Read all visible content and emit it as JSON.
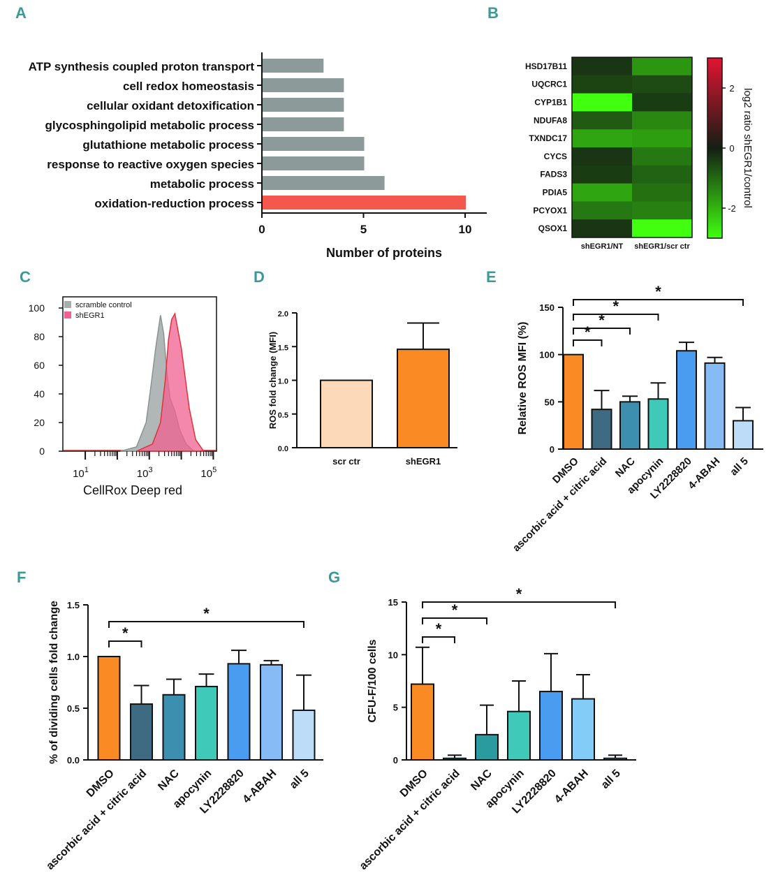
{
  "colors": {
    "panel_label": "#3a9a97",
    "grey_bar": "#8c9a99",
    "red_bar": "#f4574c",
    "histo_grey": "#a7afae",
    "histo_pink": "#f06090",
    "histo_red": "#e0303a",
    "scr_bar": "#fcd9b8",
    "orange": "#f98a24",
    "darkblue": "#3e6a82",
    "steel": "#3d8fb0",
    "teal": "#3fc9b9",
    "blue": "#4a9cf0",
    "lightblue": "#86bbf5",
    "palest": "#bcdcf7",
    "skyblue": "#83ccf7",
    "teal_dark": "#2a9ca0"
  },
  "chart_data": [
    {
      "id": "A",
      "panel_label": "A",
      "type": "bar",
      "orientation": "horizontal",
      "categories": [
        "ATP synthesis coupled proton transport",
        "cell redox homeostasis",
        "cellular oxidant detoxification",
        "glycosphingolipid metabolic process",
        "glutathione metabolic process",
        "response to reactive oxygen species",
        "metabolic process",
        "oxidation-reduction process"
      ],
      "values": [
        3,
        4,
        4,
        4,
        5,
        5,
        6,
        10
      ],
      "highlight_index": 7,
      "xlabel": "Number of proteins",
      "xlim": [
        0,
        11
      ],
      "xticks": [
        "0",
        "5",
        "10"
      ]
    },
    {
      "id": "B",
      "panel_label": "B",
      "type": "heatmap",
      "rows": [
        "HSD17B11",
        "UQCRC1",
        "CYP1B1",
        "NDUFA8",
        "TXNDC17",
        "CYCS",
        "FADS3",
        "PDIA5",
        "PCYOX1",
        "QSOX1"
      ],
      "columns": [
        "shEGR1/NT",
        "shEGR1/scr ctr"
      ],
      "values": [
        [
          -0.3,
          -1.6
        ],
        [
          -0.5,
          -0.6
        ],
        [
          -3.0,
          -0.4
        ],
        [
          -0.8,
          -1.4
        ],
        [
          -1.8,
          -1.7
        ],
        [
          -0.3,
          -1.2
        ],
        [
          -0.4,
          -0.9
        ],
        [
          -1.8,
          -1.1
        ],
        [
          -1.2,
          -1.3
        ],
        [
          -0.3,
          -3.0
        ]
      ],
      "colorbar_label": "log2 ratio shEGR1/control",
      "colorbar_range": [
        -3,
        3
      ],
      "colorbar_ticks": [
        "2",
        "0",
        "-2"
      ]
    },
    {
      "id": "C",
      "panel_label": "C",
      "type": "area",
      "legend": [
        "scramble control",
        "shEGR1"
      ],
      "xlabel": "CellRox Deep red",
      "xtick_bases": [
        "10",
        "10",
        "10"
      ],
      "xtick_exps": [
        "1",
        "3",
        "5"
      ],
      "yticks": [
        "100",
        "80",
        "60",
        "40",
        "20",
        "0"
      ],
      "ylim": [
        0,
        100
      ],
      "series": [
        {
          "name": "scramble control",
          "x_log10": [
            2.1,
            2.6,
            2.9,
            3.05,
            3.2,
            3.35,
            3.45,
            3.55,
            3.65,
            3.8,
            3.95,
            4.15,
            4.4
          ],
          "y": [
            0,
            3,
            20,
            45,
            72,
            95,
            82,
            55,
            37,
            28,
            15,
            5,
            0
          ]
        },
        {
          "name": "shEGR1",
          "x_log10": [
            2.6,
            3.1,
            3.35,
            3.5,
            3.6,
            3.7,
            3.8,
            3.9,
            4.0,
            4.1,
            4.25,
            4.45,
            4.7
          ],
          "y": [
            0,
            5,
            20,
            50,
            78,
            92,
            96,
            84,
            72,
            55,
            30,
            8,
            0
          ]
        }
      ]
    },
    {
      "id": "D",
      "panel_label": "D",
      "type": "bar",
      "categories": [
        "scr ctr",
        "shEGR1"
      ],
      "values": [
        1.0,
        1.46
      ],
      "errors": [
        0,
        0.39
      ],
      "ylabel": "ROS fold change (MFI)",
      "ylim": [
        0,
        2.0
      ],
      "yticks": [
        "0.0",
        "0.5",
        "1.0",
        "1.5",
        "2.0"
      ]
    },
    {
      "id": "E",
      "panel_label": "E",
      "type": "bar",
      "categories": [
        "DMSO",
        "ascorbic acid + citric acid",
        "NAC",
        "apocynin",
        "LY2228820",
        "4-ABAH",
        "all 5"
      ],
      "values": [
        100,
        42,
        50,
        53,
        104,
        91,
        30
      ],
      "errors": [
        0,
        20,
        6,
        17,
        9,
        6,
        14
      ],
      "ylabel": "Relative ROS MFI (%)",
      "ylim": [
        0,
        150
      ],
      "yticks": [
        "0",
        "50",
        "100",
        "150"
      ],
      "significance": [
        {
          "from": 0,
          "to": 1,
          "label": "*"
        },
        {
          "from": 0,
          "to": 2,
          "label": "*"
        },
        {
          "from": 0,
          "to": 3,
          "label": "*"
        },
        {
          "from": 0,
          "to": 6,
          "label": "*"
        }
      ]
    },
    {
      "id": "F",
      "panel_label": "F",
      "type": "bar",
      "categories": [
        "DMSO",
        "ascorbic acid + citric acid",
        "NAC",
        "apocynin",
        "LY2228820",
        "4-ABAH",
        "all 5"
      ],
      "values": [
        1.0,
        0.54,
        0.63,
        0.71,
        0.93,
        0.92,
        0.48
      ],
      "errors": [
        0,
        0.18,
        0.15,
        0.12,
        0.13,
        0.04,
        0.34
      ],
      "ylabel": "% of dividing cells fold change",
      "ylim": [
        0,
        1.5
      ],
      "yticks": [
        "0.0",
        "0.5",
        "1.0",
        "1.5"
      ],
      "significance": [
        {
          "from": 0,
          "to": 1,
          "label": "*"
        },
        {
          "from": 0,
          "to": 6,
          "label": "*"
        }
      ]
    },
    {
      "id": "G",
      "panel_label": "G",
      "type": "bar",
      "categories": [
        "DMSO",
        "ascorbic acid + citric acid",
        "NAC",
        "apocynin",
        "LY2228820",
        "4-ABAH",
        "all 5"
      ],
      "values": [
        7.2,
        0.15,
        2.4,
        4.6,
        6.5,
        5.8,
        0.15
      ],
      "errors": [
        3.5,
        0.3,
        2.8,
        2.9,
        3.6,
        2.3,
        0.3
      ],
      "ylabel": "CFU-F/100 cells",
      "ylim": [
        0,
        15
      ],
      "yticks": [
        "0",
        "5",
        "10",
        "15"
      ],
      "significance": [
        {
          "from": 0,
          "to": 1,
          "label": "*"
        },
        {
          "from": 0,
          "to": 2,
          "label": "*"
        },
        {
          "from": 0,
          "to": 6,
          "label": "*"
        }
      ]
    }
  ]
}
